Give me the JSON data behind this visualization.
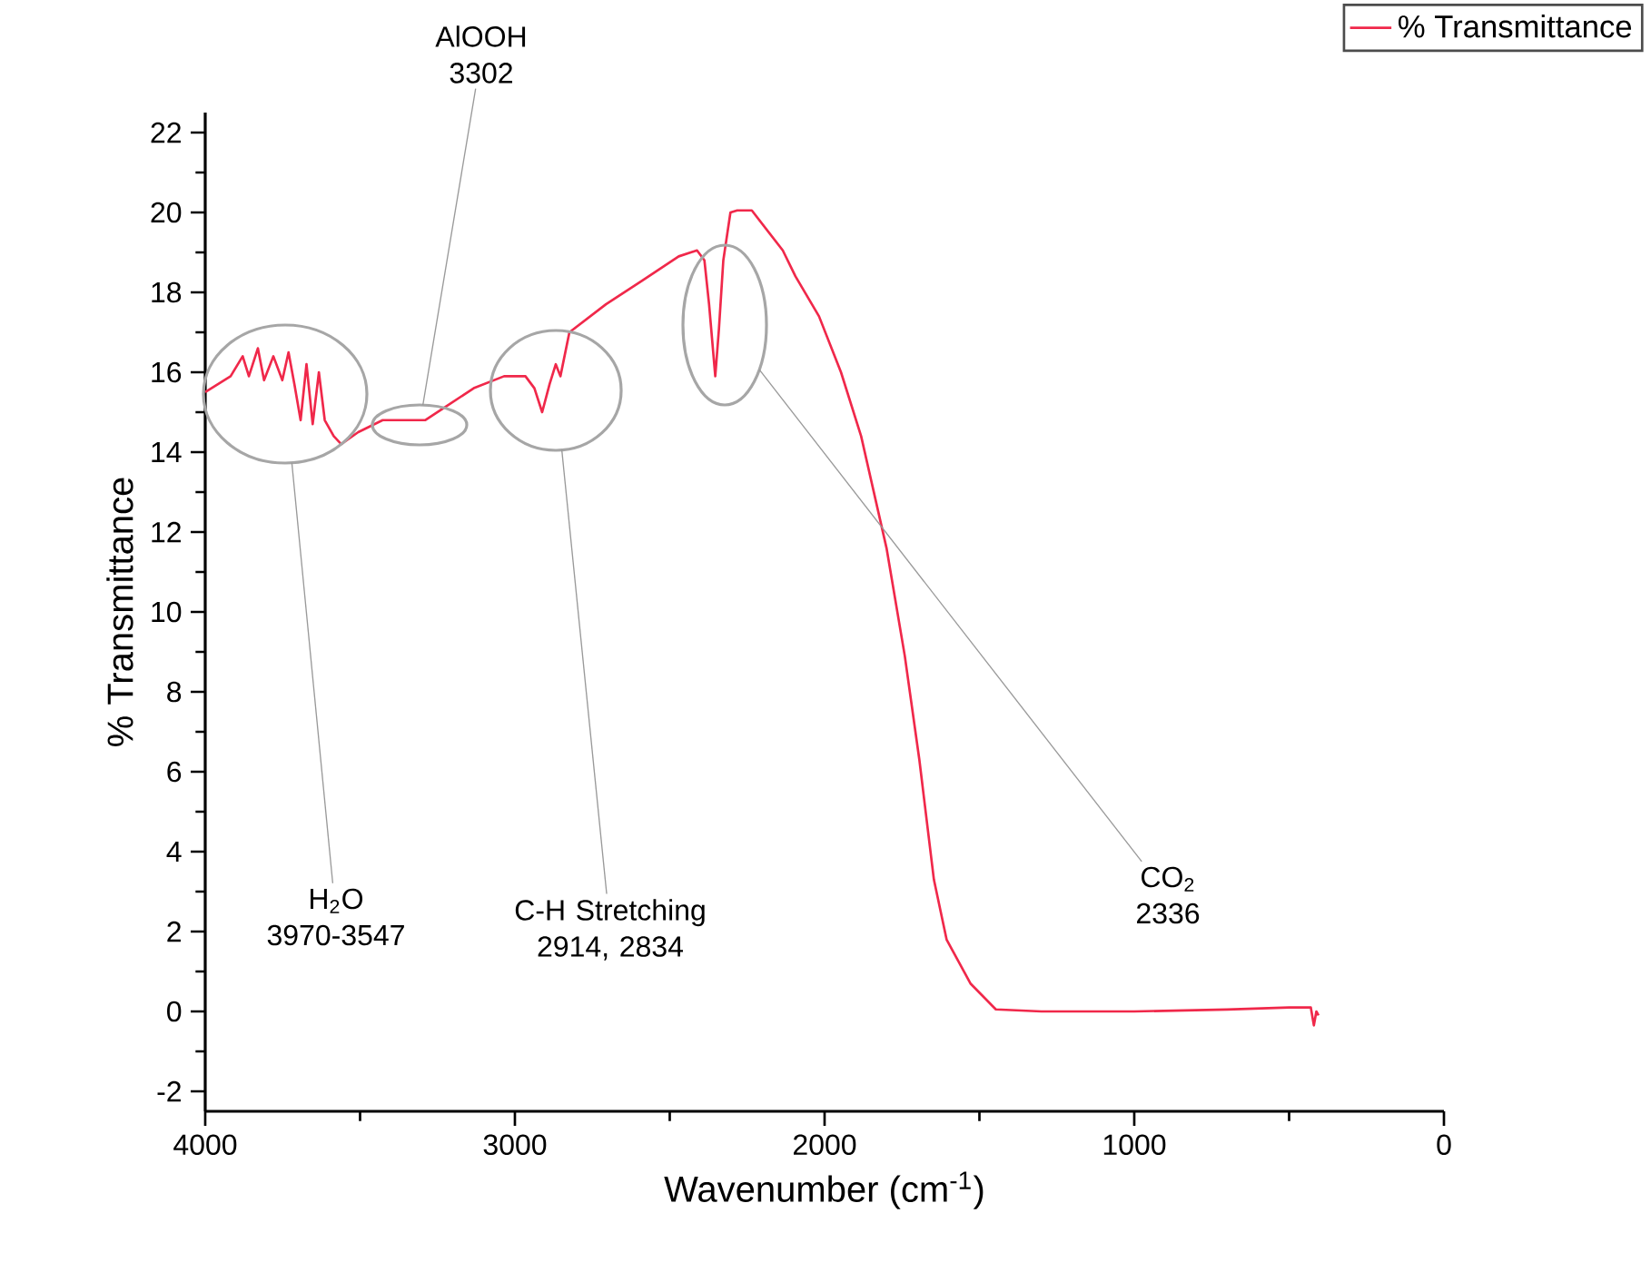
{
  "chart_data": {
    "type": "line",
    "xlabel": "Wavenumber (cm$^{-1}$)",
    "ylabel": "% Transmittance",
    "xlim": [
      4000,
      0
    ],
    "xticks": [
      4000,
      3000,
      2000,
      1000,
      0
    ],
    "ylim": [
      -2.5,
      22.5
    ],
    "yticks": [
      -2,
      0,
      2,
      4,
      6,
      8,
      10,
      12,
      14,
      16,
      18,
      20,
      22
    ],
    "legend": "top right",
    "grid": false,
    "marker": "none",
    "line_style": "solid",
    "series": [
      {
        "name": "% Transmittance",
        "color": "#f0284a",
        "x": [
          4000,
          3918,
          3879,
          3859,
          3830,
          3810,
          3780,
          3751,
          3731,
          3712,
          3692,
          3673,
          3653,
          3633,
          3614,
          3585,
          3561,
          3506,
          3427,
          3290,
          3231,
          3133,
          3035,
          2966,
          2937,
          2912,
          2888,
          2868,
          2853,
          2824,
          2706,
          2588,
          2471,
          2412,
          2388,
          2373,
          2353,
          2341,
          2327,
          2304,
          2282,
          2235,
          2135,
          2094,
          2018,
          1947,
          1882,
          1800,
          1741,
          1694,
          1647,
          1606,
          1529,
          1447,
          1300,
          1000,
          700,
          500,
          430,
          420,
          412,
          405
        ],
        "values": [
          15.5,
          15.9,
          16.4,
          15.9,
          16.6,
          15.8,
          16.4,
          15.8,
          16.5,
          15.7,
          14.8,
          16.2,
          14.7,
          16.0,
          14.8,
          14.4,
          14.2,
          14.5,
          14.8,
          14.8,
          15.1,
          15.6,
          15.9,
          15.9,
          15.6,
          15.0,
          15.7,
          16.2,
          15.9,
          17.0,
          17.7,
          18.3,
          18.9,
          19.05,
          18.8,
          17.7,
          15.9,
          17.1,
          18.8,
          20.0,
          20.05,
          20.05,
          19.05,
          18.4,
          17.4,
          16.0,
          14.4,
          11.6,
          8.9,
          6.3,
          3.3,
          1.8,
          0.7,
          0.05,
          0.0,
          0.0,
          0.05,
          0.1,
          0.1,
          -0.35,
          0.0,
          -0.1
        ]
      }
    ],
    "annotations": [
      "H$_{2}$O 3970-3547",
      "AlOOH 3302",
      "C-H Stretching 2914, 2834",
      "CO$_{2}$ 2336"
    ]
  }
}
